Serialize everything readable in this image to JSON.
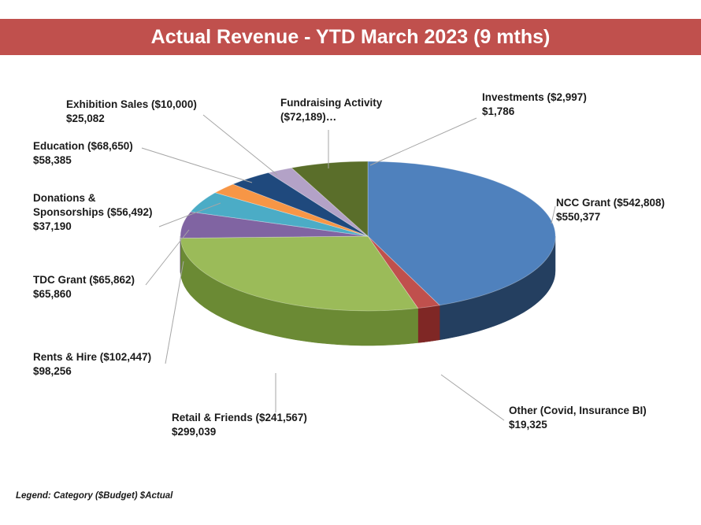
{
  "chart_data": {
    "type": "pie",
    "title": "Actual Revenue - YTD March 2023 (9 mths)",
    "legend_note": "Legend: Category ($Budget) $Actual",
    "slices": [
      {
        "category": "NCC Grant",
        "label_line1": "NCC Grant ($542,808)",
        "label_line2": "$550,377",
        "budget": 542808,
        "actual": 550377,
        "color": "#4f81bd",
        "side_color": "#243f60"
      },
      {
        "category": "Other (Covid, Insurance BI)",
        "label_line1": "Other (Covid, Insurance BI)",
        "label_line2": "$19,325",
        "budget": null,
        "actual": 19325,
        "color": "#c0504d",
        "side_color": "#7f2725"
      },
      {
        "category": "Retail & Friends",
        "label_line1": "Retail & Friends ($241,567)",
        "label_line2": "$299,039",
        "budget": 241567,
        "actual": 299039,
        "color": "#9bbb59",
        "side_color": "#6b8a34"
      },
      {
        "category": "Rents & Hire",
        "label_line1": "Rents & Hire ($102,447)",
        "label_line2": "$98,256",
        "budget": 102447,
        "actual": 98256,
        "color": "#8064a2",
        "side_color": "#57416f"
      },
      {
        "category": "TDC Grant",
        "label_line1": "TDC Grant ($65,862)",
        "label_line2": "$65,860",
        "budget": 65862,
        "actual": 65860,
        "color": "#4bacc6",
        "side_color": "#2b7287"
      },
      {
        "category": "Donations & Sponsorships",
        "label_line1": "Donations &",
        "label_line1b": "Sponsorships ($56,492)",
        "label_line2": "$37,190",
        "budget": 56492,
        "actual": 37190,
        "color": "#f79646",
        "side_color": "#b5621b"
      },
      {
        "category": "Education",
        "label_line1": "Education ($68,650)",
        "label_line2": "$58,385",
        "budget": 68650,
        "actual": 58385,
        "color": "#1f497d",
        "side_color": "#13305a"
      },
      {
        "category": "Exhibition Sales",
        "label_line1": "Exhibition Sales ($10,000)",
        "label_line2": "$25,082",
        "budget": 10000,
        "actual": 25082,
        "color": "#b3a2c7",
        "side_color": "#7d6b95"
      },
      {
        "category": "Fundraising Activity",
        "label_line1": "Fundraising Activity",
        "label_line2": "($72,189)…",
        "budget": 72189,
        "actual": null,
        "color": "#5a6e2a",
        "side_color": "#3c4a1a"
      },
      {
        "category": "Investments",
        "label_line1": "Investments ($2,997)",
        "label_line2": "$1,786",
        "budget": 2997,
        "actual": 1786,
        "color": "#4f81bd",
        "side_color": "#243f60"
      }
    ]
  }
}
